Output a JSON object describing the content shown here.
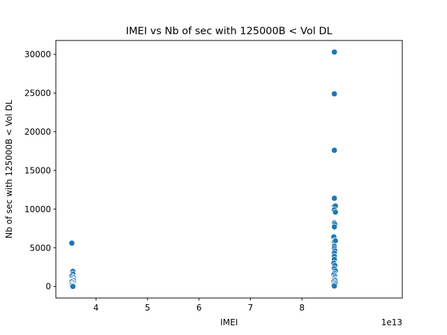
{
  "chart_data": {
    "type": "scatter",
    "title": "IMEI vs Nb of sec with 125000B < Vol DL",
    "xlabel": "IMEI",
    "ylabel": "Nb of sec with 125000B < Vol DL",
    "x_offset_label": "1e13",
    "xlim": [
      3.22,
      9.95
    ],
    "ylim": [
      -1500,
      31800
    ],
    "xticks": [
      4,
      5,
      6,
      7,
      8
    ],
    "yticks": [
      0,
      5000,
      10000,
      15000,
      20000,
      25000,
      30000
    ],
    "grid": false,
    "color": "#1f77b4",
    "x": [
      3.53,
      3.55,
      3.55,
      3.53,
      3.56,
      3.54,
      3.55,
      3.56,
      3.54,
      3.53,
      3.55,
      3.56,
      3.54,
      3.55,
      3.53,
      3.56,
      3.55,
      3.54,
      3.55,
      8.63,
      8.63,
      8.63,
      8.63,
      8.63,
      8.65,
      8.63,
      8.65,
      8.63,
      8.64,
      8.63,
      8.62,
      8.64,
      8.63,
      8.65,
      8.63,
      8.63,
      8.64,
      8.63,
      8.63,
      8.63,
      8.62,
      8.64,
      8.63,
      8.65,
      8.63,
      8.62,
      8.64,
      8.63,
      8.63,
      8.64,
      8.62,
      8.65,
      8.63,
      8.64,
      8.62,
      8.63
    ],
    "y": [
      5600,
      1950,
      1600,
      1300,
      1150,
      1050,
      900,
      800,
      700,
      600,
      500,
      400,
      300,
      250,
      200,
      150,
      100,
      50,
      0,
      30300,
      24900,
      17600,
      11400,
      10400,
      10400,
      9900,
      9600,
      8200,
      8000,
      7700,
      6400,
      5900,
      5800,
      5900,
      5200,
      4900,
      4600,
      4300,
      3900,
      3500,
      3000,
      2700,
      2300,
      2000,
      1700,
      1500,
      1300,
      1100,
      900,
      800,
      600,
      500,
      400,
      300,
      150,
      50
    ]
  }
}
